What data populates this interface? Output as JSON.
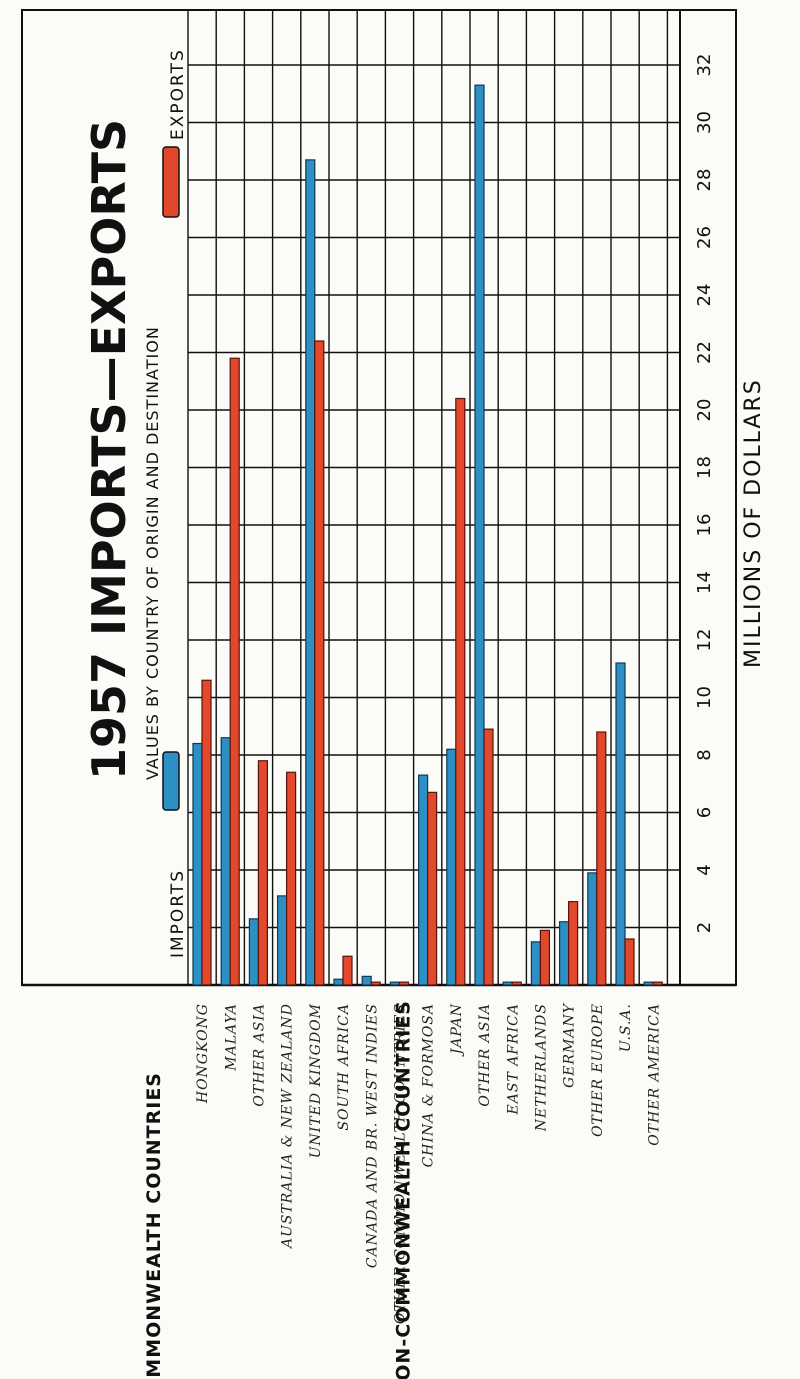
{
  "chart_data": {
    "type": "bar",
    "orientation": "horizontal",
    "title": "1957 IMPORTS—EXPORTS",
    "subtitle": "VALUES BY COUNTRY OF ORIGIN AND DESTINATION",
    "xlabel": "MILLIONS OF DOLLARS",
    "xlim": [
      0,
      33
    ],
    "ticks": [
      "2",
      "4",
      "6",
      "8",
      "10",
      "12",
      "14",
      "16",
      "18",
      "20",
      "22",
      "24",
      "26",
      "28",
      "30",
      "32"
    ],
    "grid": true,
    "legend": {
      "imports": "IMPORTS",
      "exports": "EXPORTS",
      "placement": "top"
    },
    "colors": {
      "imports": "#2e8fc4",
      "exports": "#e2482b"
    },
    "groups": [
      {
        "label": "COMMONWEALTH COUNTRIES",
        "categories": [
          {
            "name": "HONGKONG",
            "imports": 8.4,
            "exports": 10.6
          },
          {
            "name": "MALAYA",
            "imports": 8.6,
            "exports": 21.8
          },
          {
            "name": "OTHER ASIA",
            "imports": 2.3,
            "exports": 7.8
          },
          {
            "name": "AUSTRALIA & NEW ZEALAND",
            "imports": 3.1,
            "exports": 7.4
          },
          {
            "name": "UNITED KINGDOM",
            "imports": 28.7,
            "exports": 22.4
          },
          {
            "name": "SOUTH AFRICA",
            "imports": 0.2,
            "exports": 1.0
          },
          {
            "name": "CANADA AND BR. WEST INDIES",
            "imports": 0.3,
            "exports": 0.1
          },
          {
            "name": "OTHER COMMONWEALTH COUNTRIES",
            "imports": 0.1,
            "exports": 0.1
          }
        ]
      },
      {
        "label": "NON-COMMONWEALTH COUNTRIES",
        "categories": [
          {
            "name": "CHINA & FORMOSA",
            "imports": 7.3,
            "exports": 6.7
          },
          {
            "name": "JAPAN",
            "imports": 8.2,
            "exports": 20.4
          },
          {
            "name": "OTHER ASIA",
            "imports": 31.3,
            "exports": 8.9
          },
          {
            "name": "EAST AFRICA",
            "imports": 0.1,
            "exports": 0.1
          },
          {
            "name": "NETHERLANDS",
            "imports": 1.5,
            "exports": 1.9
          },
          {
            "name": "GERMANY",
            "imports": 2.2,
            "exports": 2.9
          },
          {
            "name": "OTHER EUROPE",
            "imports": 3.9,
            "exports": 8.8
          },
          {
            "name": "U.S.A.",
            "imports": 11.2,
            "exports": 1.6
          },
          {
            "name": "OTHER AMERICA",
            "imports": 0.1,
            "exports": 0.1
          }
        ]
      }
    ]
  }
}
